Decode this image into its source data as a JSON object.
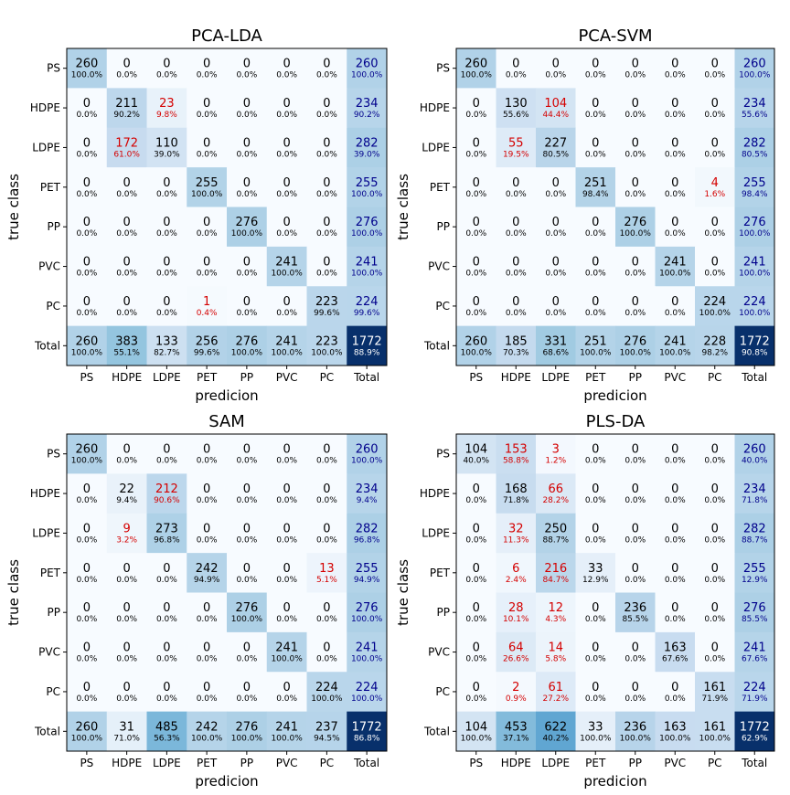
{
  "figure": {
    "xlabel": "predicion",
    "ylabel": "true class",
    "colors": {
      "diag": "#000000",
      "off": "#d40000",
      "total": "#00008b",
      "frame": "#000000"
    }
  },
  "chart_data": [
    {
      "type": "heatmap",
      "title": "PCA-LDA",
      "xlabel": "predicion",
      "ylabel": "true class",
      "categories": [
        "PS",
        "HDPE",
        "LDPE",
        "PET",
        "PP",
        "PVC",
        "PC",
        "Total"
      ],
      "counts": [
        [
          260,
          0,
          0,
          0,
          0,
          0,
          0,
          260
        ],
        [
          0,
          211,
          23,
          0,
          0,
          0,
          0,
          234
        ],
        [
          0,
          172,
          110,
          0,
          0,
          0,
          0,
          282
        ],
        [
          0,
          0,
          0,
          255,
          0,
          0,
          0,
          255
        ],
        [
          0,
          0,
          0,
          0,
          276,
          0,
          0,
          276
        ],
        [
          0,
          0,
          0,
          0,
          0,
          241,
          0,
          241
        ],
        [
          0,
          0,
          0,
          1,
          0,
          0,
          223,
          224
        ],
        [
          260,
          383,
          133,
          256,
          276,
          241,
          223,
          1772
        ]
      ],
      "percents": [
        [
          "100.0%",
          "0.0%",
          "0.0%",
          "0.0%",
          "0.0%",
          "0.0%",
          "0.0%",
          "100.0%"
        ],
        [
          "0.0%",
          "90.2%",
          "9.8%",
          "0.0%",
          "0.0%",
          "0.0%",
          "0.0%",
          "90.2%"
        ],
        [
          "0.0%",
          "61.0%",
          "39.0%",
          "0.0%",
          "0.0%",
          "0.0%",
          "0.0%",
          "39.0%"
        ],
        [
          "0.0%",
          "0.0%",
          "0.0%",
          "100.0%",
          "0.0%",
          "0.0%",
          "0.0%",
          "100.0%"
        ],
        [
          "0.0%",
          "0.0%",
          "0.0%",
          "0.0%",
          "100.0%",
          "0.0%",
          "0.0%",
          "100.0%"
        ],
        [
          "0.0%",
          "0.0%",
          "0.0%",
          "0.0%",
          "0.0%",
          "100.0%",
          "0.0%",
          "100.0%"
        ],
        [
          "0.0%",
          "0.0%",
          "0.0%",
          "0.4%",
          "0.0%",
          "0.0%",
          "99.6%",
          "99.6%"
        ],
        [
          "100.0%",
          "55.1%",
          "82.7%",
          "99.6%",
          "100.0%",
          "100.0%",
          "100.0%",
          "88.9%"
        ]
      ]
    },
    {
      "type": "heatmap",
      "title": "PCA-SVM",
      "xlabel": "predicion",
      "ylabel": "true class",
      "categories": [
        "PS",
        "HDPE",
        "LDPE",
        "PET",
        "PP",
        "PVC",
        "PC",
        "Total"
      ],
      "counts": [
        [
          260,
          0,
          0,
          0,
          0,
          0,
          0,
          260
        ],
        [
          0,
          130,
          104,
          0,
          0,
          0,
          0,
          234
        ],
        [
          0,
          55,
          227,
          0,
          0,
          0,
          0,
          282
        ],
        [
          0,
          0,
          0,
          251,
          0,
          0,
          4,
          255
        ],
        [
          0,
          0,
          0,
          0,
          276,
          0,
          0,
          276
        ],
        [
          0,
          0,
          0,
          0,
          0,
          241,
          0,
          241
        ],
        [
          0,
          0,
          0,
          0,
          0,
          0,
          224,
          224
        ],
        [
          260,
          185,
          331,
          251,
          276,
          241,
          228,
          1772
        ]
      ],
      "percents": [
        [
          "100.0%",
          "0.0%",
          "0.0%",
          "0.0%",
          "0.0%",
          "0.0%",
          "0.0%",
          "100.0%"
        ],
        [
          "0.0%",
          "55.6%",
          "44.4%",
          "0.0%",
          "0.0%",
          "0.0%",
          "0.0%",
          "55.6%"
        ],
        [
          "0.0%",
          "19.5%",
          "80.5%",
          "0.0%",
          "0.0%",
          "0.0%",
          "0.0%",
          "80.5%"
        ],
        [
          "0.0%",
          "0.0%",
          "0.0%",
          "98.4%",
          "0.0%",
          "0.0%",
          "1.6%",
          "98.4%"
        ],
        [
          "0.0%",
          "0.0%",
          "0.0%",
          "0.0%",
          "100.0%",
          "0.0%",
          "0.0%",
          "100.0%"
        ],
        [
          "0.0%",
          "0.0%",
          "0.0%",
          "0.0%",
          "0.0%",
          "100.0%",
          "0.0%",
          "100.0%"
        ],
        [
          "0.0%",
          "0.0%",
          "0.0%",
          "0.0%",
          "0.0%",
          "0.0%",
          "100.0%",
          "100.0%"
        ],
        [
          "100.0%",
          "70.3%",
          "68.6%",
          "100.0%",
          "100.0%",
          "100.0%",
          "98.2%",
          "90.8%"
        ]
      ]
    },
    {
      "type": "heatmap",
      "title": "SAM",
      "xlabel": "predicion",
      "ylabel": "true class",
      "categories": [
        "PS",
        "HDPE",
        "LDPE",
        "PET",
        "PP",
        "PVC",
        "PC",
        "Total"
      ],
      "counts": [
        [
          260,
          0,
          0,
          0,
          0,
          0,
          0,
          260
        ],
        [
          0,
          22,
          212,
          0,
          0,
          0,
          0,
          234
        ],
        [
          0,
          9,
          273,
          0,
          0,
          0,
          0,
          282
        ],
        [
          0,
          0,
          0,
          242,
          0,
          0,
          13,
          255
        ],
        [
          0,
          0,
          0,
          0,
          276,
          0,
          0,
          276
        ],
        [
          0,
          0,
          0,
          0,
          0,
          241,
          0,
          241
        ],
        [
          0,
          0,
          0,
          0,
          0,
          0,
          224,
          224
        ],
        [
          260,
          31,
          485,
          242,
          276,
          241,
          237,
          1772
        ]
      ],
      "percents": [
        [
          "100.0%",
          "0.0%",
          "0.0%",
          "0.0%",
          "0.0%",
          "0.0%",
          "0.0%",
          "100.0%"
        ],
        [
          "0.0%",
          "9.4%",
          "90.6%",
          "0.0%",
          "0.0%",
          "0.0%",
          "0.0%",
          "9.4%"
        ],
        [
          "0.0%",
          "3.2%",
          "96.8%",
          "0.0%",
          "0.0%",
          "0.0%",
          "0.0%",
          "96.8%"
        ],
        [
          "0.0%",
          "0.0%",
          "0.0%",
          "94.9%",
          "0.0%",
          "0.0%",
          "5.1%",
          "94.9%"
        ],
        [
          "0.0%",
          "0.0%",
          "0.0%",
          "0.0%",
          "100.0%",
          "0.0%",
          "0.0%",
          "100.0%"
        ],
        [
          "0.0%",
          "0.0%",
          "0.0%",
          "0.0%",
          "0.0%",
          "100.0%",
          "0.0%",
          "100.0%"
        ],
        [
          "0.0%",
          "0.0%",
          "0.0%",
          "0.0%",
          "0.0%",
          "0.0%",
          "100.0%",
          "100.0%"
        ],
        [
          "100.0%",
          "71.0%",
          "56.3%",
          "100.0%",
          "100.0%",
          "100.0%",
          "94.5%",
          "86.8%"
        ]
      ]
    },
    {
      "type": "heatmap",
      "title": "PLS-DA",
      "xlabel": "predicion",
      "ylabel": "true class",
      "categories": [
        "PS",
        "HDPE",
        "LDPE",
        "PET",
        "PP",
        "PVC",
        "PC",
        "Total"
      ],
      "counts": [
        [
          104,
          153,
          3,
          0,
          0,
          0,
          0,
          260
        ],
        [
          0,
          168,
          66,
          0,
          0,
          0,
          0,
          234
        ],
        [
          0,
          32,
          250,
          0,
          0,
          0,
          0,
          282
        ],
        [
          0,
          6,
          216,
          33,
          0,
          0,
          0,
          255
        ],
        [
          0,
          28,
          12,
          0,
          236,
          0,
          0,
          276
        ],
        [
          0,
          64,
          14,
          0,
          0,
          163,
          0,
          241
        ],
        [
          0,
          2,
          61,
          0,
          0,
          0,
          161,
          224
        ],
        [
          104,
          453,
          622,
          33,
          236,
          163,
          161,
          1772
        ]
      ],
      "percents": [
        [
          "40.0%",
          "58.8%",
          "1.2%",
          "0.0%",
          "0.0%",
          "0.0%",
          "0.0%",
          "40.0%"
        ],
        [
          "0.0%",
          "71.8%",
          "28.2%",
          "0.0%",
          "0.0%",
          "0.0%",
          "0.0%",
          "71.8%"
        ],
        [
          "0.0%",
          "11.3%",
          "88.7%",
          "0.0%",
          "0.0%",
          "0.0%",
          "0.0%",
          "88.7%"
        ],
        [
          "0.0%",
          "2.4%",
          "84.7%",
          "12.9%",
          "0.0%",
          "0.0%",
          "0.0%",
          "12.9%"
        ],
        [
          "0.0%",
          "10.1%",
          "4.3%",
          "0.0%",
          "85.5%",
          "0.0%",
          "0.0%",
          "85.5%"
        ],
        [
          "0.0%",
          "26.6%",
          "5.8%",
          "0.0%",
          "0.0%",
          "67.6%",
          "0.0%",
          "67.6%"
        ],
        [
          "0.0%",
          "0.9%",
          "27.2%",
          "0.0%",
          "0.0%",
          "0.0%",
          "71.9%",
          "71.9%"
        ],
        [
          "100.0%",
          "37.1%",
          "40.2%",
          "100.0%",
          "100.0%",
          "100.0%",
          "100.0%",
          "62.9%"
        ]
      ]
    }
  ]
}
